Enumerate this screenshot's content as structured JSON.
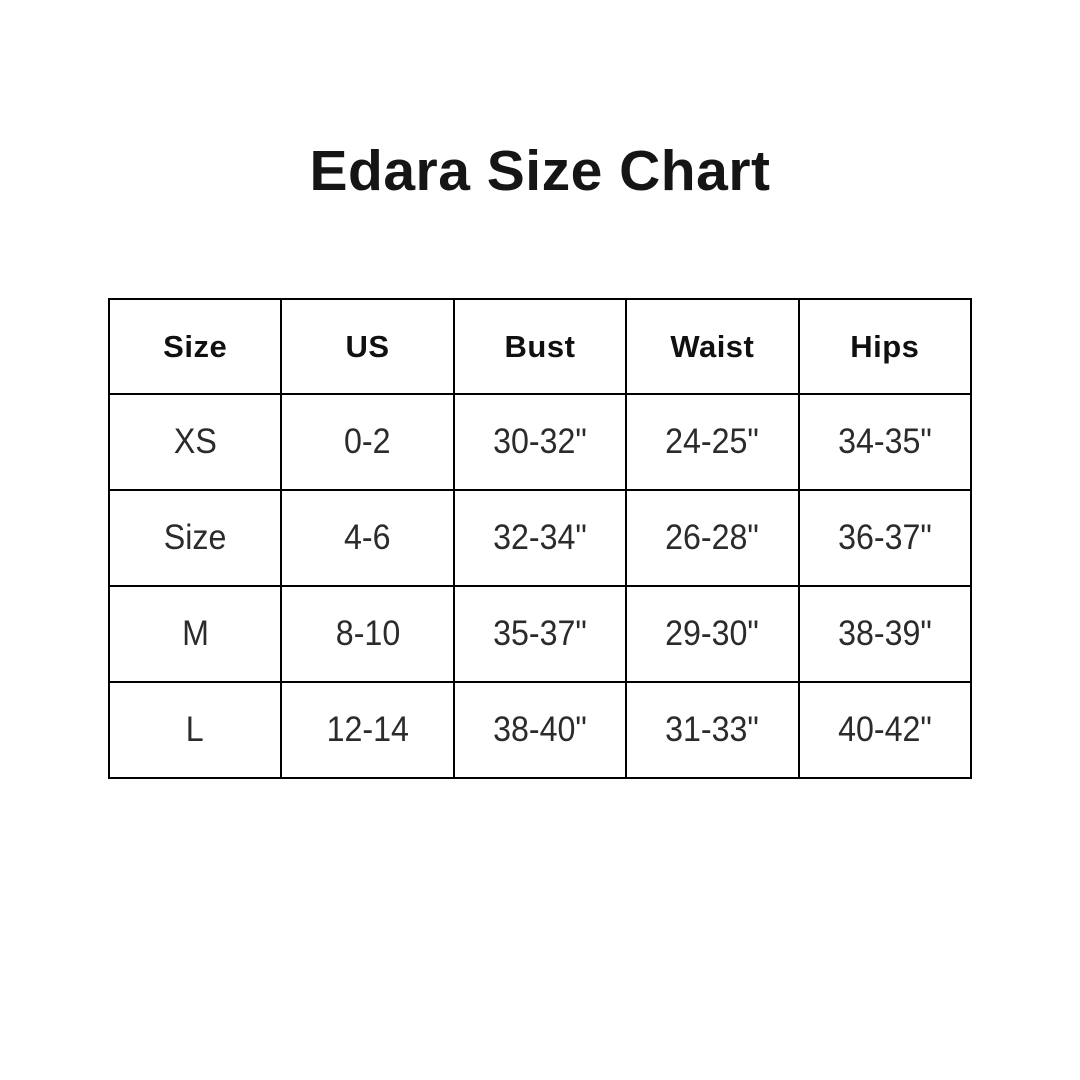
{
  "page": {
    "background": "#ffffff"
  },
  "chart_data": {
    "type": "table",
    "title": "Edara Size Chart",
    "columns": [
      "Size",
      "US",
      "Bust",
      "Waist",
      "Hips"
    ],
    "rows": [
      [
        "XS",
        "0-2",
        "30-32\"",
        "24-25\"",
        "34-35\""
      ],
      [
        "Size",
        "4-6",
        "32-34\"",
        "26-28\"",
        "36-37\""
      ],
      [
        "M",
        "8-10",
        "35-37\"",
        "29-30\"",
        "38-39\""
      ],
      [
        "L",
        "12-14",
        "38-40\"",
        "31-33\"",
        "40-42\""
      ]
    ],
    "colors": {
      "title_text": "#151515",
      "header_text": "#101010",
      "cell_text": "#2b2b2b",
      "border": "#000000",
      "background": "#ffffff"
    }
  }
}
